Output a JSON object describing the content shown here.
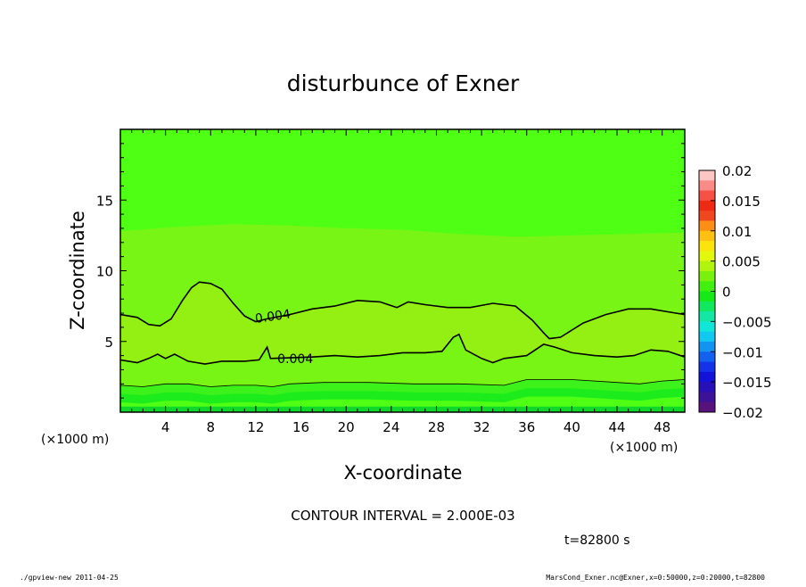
{
  "chart_data": {
    "type": "contour",
    "title": "disturbunce of Exner",
    "xlabel": "X-coordinate",
    "ylabel": "Z-coordinate",
    "x_unit": "(×1000 m)",
    "xlim": [
      0,
      50
    ],
    "ylim": [
      0,
      20
    ],
    "x_ticks": [
      "4",
      "8",
      "12",
      "16",
      "20",
      "24",
      "28",
      "32",
      "36",
      "40",
      "44",
      "48"
    ],
    "y_ticks": [
      "5",
      "10",
      "15"
    ],
    "contour_interval_text": "CONTOUR INTERVAL = 2.000E-03",
    "time_text": "t=82800 s",
    "contour_labels": [
      {
        "text": "0.004",
        "x": 13.5,
        "z": 6.8
      },
      {
        "text": "0.004",
        "x": 15.5,
        "z": 3.8
      }
    ],
    "contours": [
      {
        "level": 0.004,
        "points": [
          [
            0,
            6.9
          ],
          [
            1.5,
            6.7
          ],
          [
            2.5,
            6.2
          ],
          [
            3.5,
            6.1
          ],
          [
            4.5,
            6.6
          ],
          [
            5.5,
            7.9
          ],
          [
            6.3,
            8.8
          ],
          [
            7,
            9.2
          ],
          [
            8,
            9.1
          ],
          [
            9,
            8.7
          ],
          [
            10,
            7.7
          ],
          [
            11,
            6.8
          ],
          [
            12,
            6.4
          ],
          [
            13,
            6.6
          ],
          [
            15,
            6.9
          ],
          [
            17,
            7.3
          ],
          [
            19,
            7.5
          ],
          [
            21,
            7.9
          ],
          [
            23,
            7.8
          ],
          [
            24.5,
            7.4
          ],
          [
            25.5,
            7.8
          ],
          [
            27,
            7.6
          ],
          [
            29,
            7.4
          ],
          [
            31,
            7.4
          ],
          [
            33,
            7.7
          ],
          [
            35,
            7.5
          ],
          [
            36.5,
            6.5
          ],
          [
            37.5,
            5.6
          ],
          [
            38,
            5.2
          ],
          [
            39,
            5.3
          ],
          [
            41,
            6.3
          ],
          [
            43,
            6.9
          ],
          [
            45,
            7.3
          ],
          [
            47,
            7.3
          ],
          [
            48.5,
            7.1
          ],
          [
            50,
            6.9
          ]
        ]
      },
      {
        "level": 0.004,
        "points": [
          [
            0,
            3.7
          ],
          [
            1.5,
            3.5
          ],
          [
            2.5,
            3.8
          ],
          [
            3.3,
            4.1
          ],
          [
            4,
            3.8
          ],
          [
            4.8,
            4.1
          ],
          [
            6,
            3.6
          ],
          [
            7.5,
            3.4
          ],
          [
            9,
            3.6
          ],
          [
            11,
            3.6
          ],
          [
            12.3,
            3.7
          ],
          [
            13,
            4.6
          ],
          [
            13.3,
            3.8
          ],
          [
            17,
            3.9
          ],
          [
            19,
            4.0
          ],
          [
            21,
            3.9
          ],
          [
            23,
            4.0
          ],
          [
            25,
            4.2
          ],
          [
            27,
            4.2
          ],
          [
            28.5,
            4.3
          ],
          [
            29.5,
            5.3
          ],
          [
            30,
            5.5
          ],
          [
            30.6,
            4.4
          ],
          [
            32,
            3.8
          ],
          [
            33,
            3.5
          ],
          [
            34,
            3.8
          ],
          [
            36,
            4.0
          ],
          [
            37.5,
            4.8
          ],
          [
            38.5,
            4.6
          ],
          [
            40,
            4.2
          ],
          [
            42,
            4.0
          ],
          [
            44,
            3.9
          ],
          [
            45.5,
            4.0
          ],
          [
            47,
            4.4
          ],
          [
            48.5,
            4.3
          ],
          [
            50,
            3.9
          ]
        ]
      },
      {
        "level": 0.002,
        "points": [
          [
            0,
            1.9
          ],
          [
            2,
            1.8
          ],
          [
            4,
            2.0
          ],
          [
            6,
            2.0
          ],
          [
            8,
            1.8
          ],
          [
            10,
            1.9
          ],
          [
            12,
            1.9
          ],
          [
            13.5,
            1.8
          ],
          [
            15,
            2.0
          ],
          [
            18,
            2.1
          ],
          [
            22,
            2.1
          ],
          [
            26,
            2.0
          ],
          [
            30,
            2.0
          ],
          [
            34,
            1.9
          ],
          [
            36,
            2.3
          ],
          [
            40,
            2.3
          ],
          [
            44,
            2.1
          ],
          [
            46,
            2.0
          ],
          [
            48,
            2.2
          ],
          [
            50,
            2.3
          ]
        ]
      }
    ],
    "colorbar": {
      "labels": [
        "0.02",
        "0.015",
        "0.01",
        "0.005",
        "0",
        "−0.005",
        "−0.01",
        "−0.015",
        "−0.02"
      ],
      "colors_top_to_bottom": [
        "#fbc6c3",
        "#f98a86",
        "#f65145",
        "#ee2a14",
        "#f0481c",
        "#fb8e14",
        "#ffc012",
        "#fbe30c",
        "#e2f80c",
        "#b1f40c",
        "#7af00d",
        "#42f010",
        "#16ea16",
        "#10e85e",
        "#13e7a4",
        "#12e6d6",
        "#11c8f0",
        "#1394f0",
        "#1361ef",
        "#1433e8",
        "#1212d8",
        "#2810b8",
        "#3c1298",
        "#58127b"
      ]
    },
    "fill_colors": {
      "background": "#4fff14",
      "mid_band": "#78f514",
      "low_band": "#93f012",
      "near_ground_1": "#3df21a",
      "near_ground_2": "#1cec1c"
    }
  },
  "footer": {
    "left": "./gpview-new   2011-04-25",
    "right": "MarsCond_Exner.nc@Exner,x=0:50000,z=0:20000,t=82800"
  }
}
